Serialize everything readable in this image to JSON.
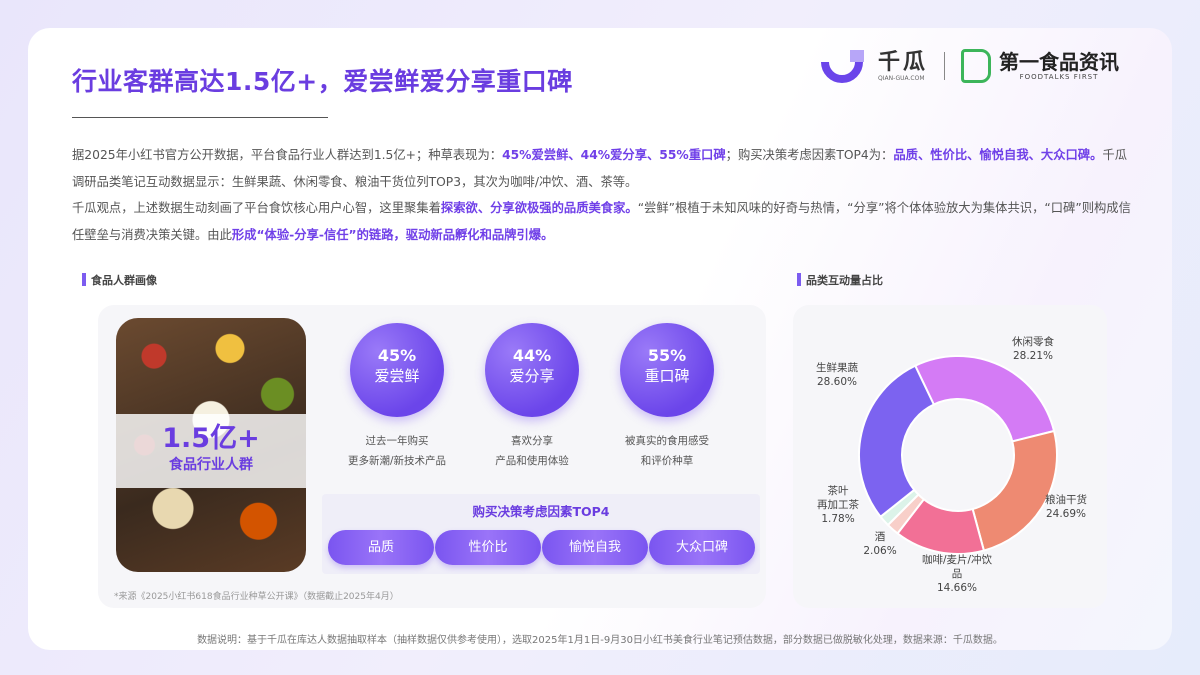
{
  "header": {
    "title": "行业客群高达1.5亿+，爱尝鲜爱分享重口碑"
  },
  "logos": {
    "qiangua": {
      "name": "千瓜",
      "domain": "QIAN-GUA.COM"
    },
    "foodtalks": {
      "name": "第一食品资讯",
      "tagline": "FOODTALKS FIRST"
    }
  },
  "intro": {
    "p1": [
      {
        "t": "据2025年小红书官方公开数据，平台食品行业人群达到1.5亿+；种草表现为：",
        "hl": false
      },
      {
        "t": "45%爱尝鲜、44%爱分享、55%重口碑",
        "hl": true
      },
      {
        "t": "；购买决策考虑因素TOP4为：",
        "hl": false
      },
      {
        "t": "品质、性价比、愉悦自我、大众口碑。",
        "hl": true
      },
      {
        "t": "千瓜调研品类笔记互动数据显示：生鲜果蔬、休闲零食、粮油干货位列TOP3，其次为咖啡/冲饮、酒、茶等。",
        "hl": false
      }
    ],
    "p2": [
      {
        "t": "千瓜观点，上述数据生动刻画了平台食饮核心用户心智，这里聚集着",
        "hl": false
      },
      {
        "t": "探索欲、分享欲极强的品质美食家。",
        "hl": true
      },
      {
        "t": "“尝鲜”根植于未知风味的好奇与热情，“分享”将个体体验放大为集体共识，“口碑”则构成信任壁垒与消费决策关键。由此",
        "hl": false
      },
      {
        "t": "形成“体验-分享-信任”的链路，驱动新品孵化和品牌引爆。",
        "hl": true
      }
    ]
  },
  "portrait": {
    "section_title": "食品人群画像",
    "total": "1.5亿+",
    "total_label": "食品行业人群",
    "stats": [
      {
        "pct": "45%",
        "label": "爱尝鲜",
        "desc1": "过去一年购买",
        "desc2": "更多新潮/新技术产品"
      },
      {
        "pct": "44%",
        "label": "爱分享",
        "desc1": "喜欢分享",
        "desc2": "产品和使用体验"
      },
      {
        "pct": "55%",
        "label": "重口碑",
        "desc1": "被真实的食用感受",
        "desc2": "和评价种草"
      }
    ],
    "top4_title": "购买决策考虑因素TOP4",
    "top4": [
      "品质",
      "性价比",
      "愉悦自我",
      "大众口碑"
    ],
    "source": "*来源《2025小红书618食品行业种草公开课》（数据截止2025年4月）"
  },
  "chart_section_title": "品类互动量占比",
  "chart_data": {
    "type": "pie",
    "donut": true,
    "categories": [
      "休闲零食",
      "粮油干货",
      "咖啡/麦片/冲饮品",
      "酒",
      "茶叶再加工茶",
      "生鲜果蔬"
    ],
    "labels": [
      [
        "休闲零食",
        "28.21%"
      ],
      [
        "粮油干货",
        "24.69%"
      ],
      [
        "咖啡/麦片/冲饮品",
        "14.66%"
      ],
      [
        "酒",
        "2.06%"
      ],
      [
        "茶叶",
        "再加工茶",
        "1.78%"
      ],
      [
        "生鲜果蔬",
        "28.60%"
      ]
    ],
    "values": [
      28.21,
      24.69,
      14.66,
      2.06,
      1.78,
      28.6
    ],
    "colors": [
      "#d47bf5",
      "#ee8a72",
      "#f27096",
      "#f8cfc9",
      "#dcf3e9",
      "#7c63f0"
    ],
    "legend": "none"
  },
  "footer": {
    "note": "数据说明：基于千瓜在库达人数据抽取样本（抽样数据仅供参考使用），选取2025年1月1日-9月30日小红书美食行业笔记预估数据，部分数据已做脱敏化处理，数据来源：千瓜数据。"
  }
}
